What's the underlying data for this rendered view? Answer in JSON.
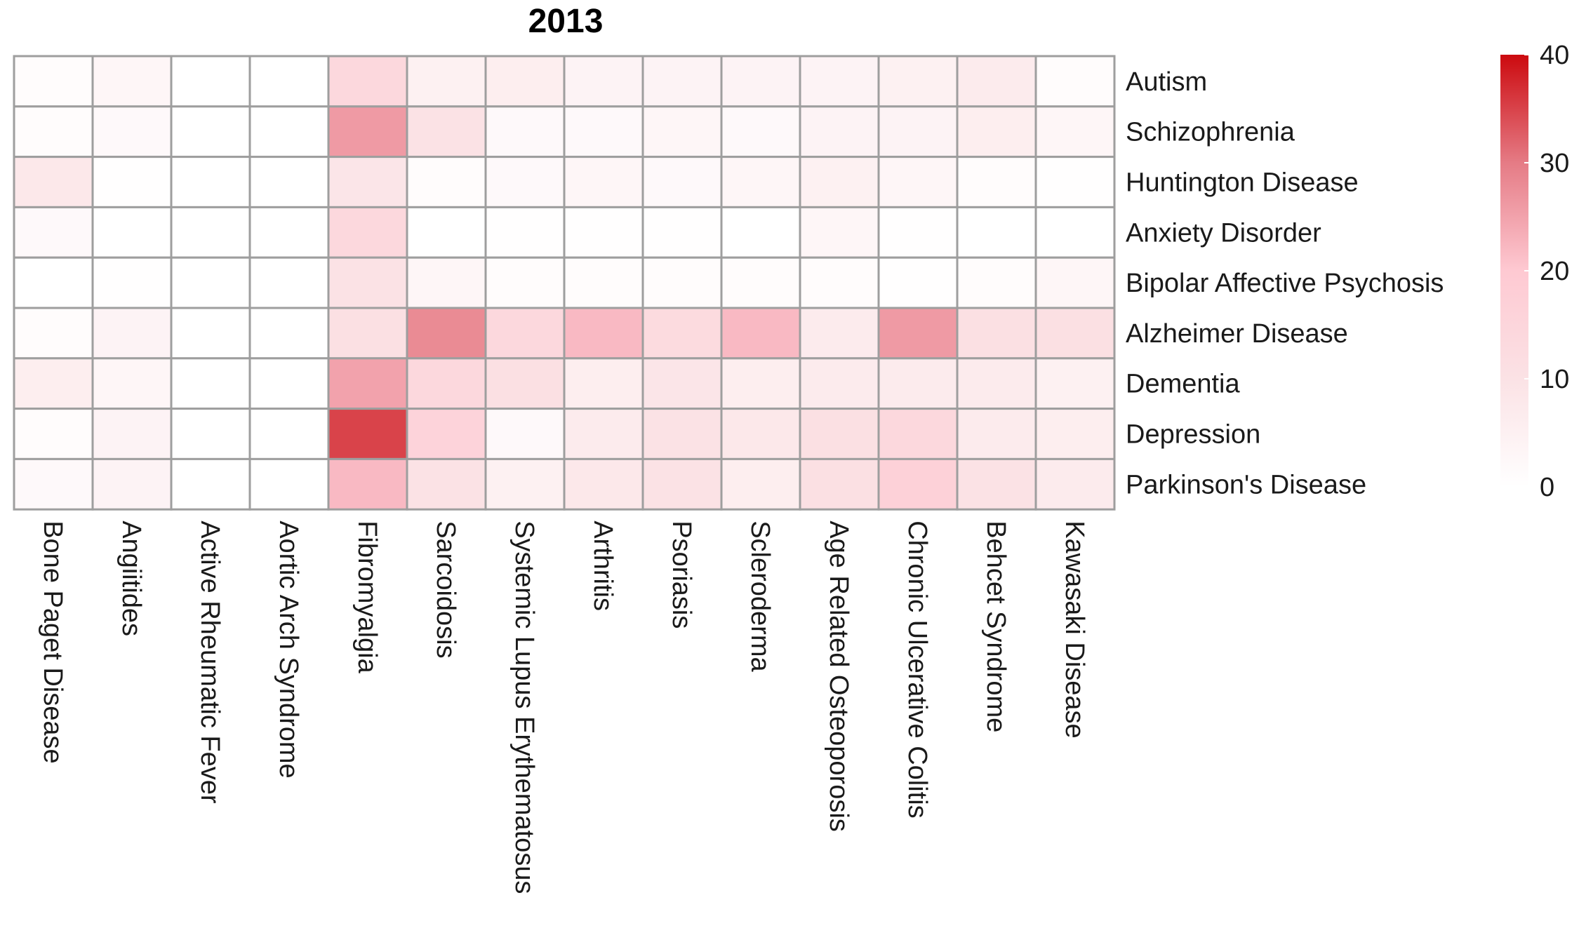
{
  "chart_data": {
    "type": "heatmap",
    "title": "2013",
    "rows": [
      "Autism",
      "Schizophrenia",
      "Huntington Disease",
      "Anxiety Disorder",
      "Bipolar Affective Psychosis",
      "Alzheimer Disease",
      "Dementia",
      "Depression",
      "Parkinson's Disease"
    ],
    "columns": [
      "Bone Paget Disease",
      "Angiitides",
      "Active Rheumatic Fever",
      "Aortic Arch Syndrome",
      "Fibromyalgia",
      "Sarcoidosis",
      "Systemic Lupus Erythematosus",
      "Arthritis",
      "Psoriasis",
      "Scleroderma",
      "Age Related Osteoporosis",
      "Chronic Ulcerative Colitis",
      "Behcet Syndrome",
      "Kawasaki Disease"
    ],
    "values": [
      [
        1,
        3,
        0,
        0,
        14,
        5,
        6,
        4,
        4,
        4,
        4,
        5,
        7,
        1
      ],
      [
        1,
        2,
        0,
        0,
        26,
        10,
        2,
        2,
        3,
        2,
        4,
        4,
        6,
        3
      ],
      [
        8,
        0.5,
        0,
        0,
        9,
        1,
        2,
        3,
        2,
        3,
        5,
        3,
        1,
        0.5
      ],
      [
        2,
        0,
        0,
        0,
        14,
        0,
        0.5,
        0.5,
        0.5,
        0,
        3,
        0.5,
        0,
        0
      ],
      [
        0,
        0.5,
        0,
        0,
        10,
        3,
        1,
        1,
        1,
        1,
        1,
        0.5,
        1,
        3
      ],
      [
        1,
        4,
        0,
        0,
        11,
        28,
        14,
        22,
        13,
        22,
        7,
        26,
        11,
        11
      ],
      [
        6,
        3,
        0,
        0,
        25,
        14,
        11,
        6,
        9,
        6,
        7,
        7,
        7,
        5
      ],
      [
        1,
        4,
        0,
        0,
        35,
        16,
        2,
        7,
        10,
        8,
        11,
        14,
        7,
        6
      ],
      [
        2,
        4,
        0,
        0,
        22,
        10,
        5,
        8,
        10,
        6,
        11,
        17,
        10,
        7
      ]
    ],
    "colorbar": {
      "min": 0,
      "max": 40,
      "ticks": [
        0,
        10,
        20,
        30,
        40
      ],
      "tick_labels": [
        "0",
        "10",
        "20",
        "30",
        "40"
      ],
      "colors": [
        "#ffffff",
        "#fbe2e5",
        "#fec9d2",
        "#e57b85",
        "#cc0a0f"
      ]
    },
    "grid": true,
    "cell_border_color": "#9e9e9e",
    "legend_position": "right"
  }
}
